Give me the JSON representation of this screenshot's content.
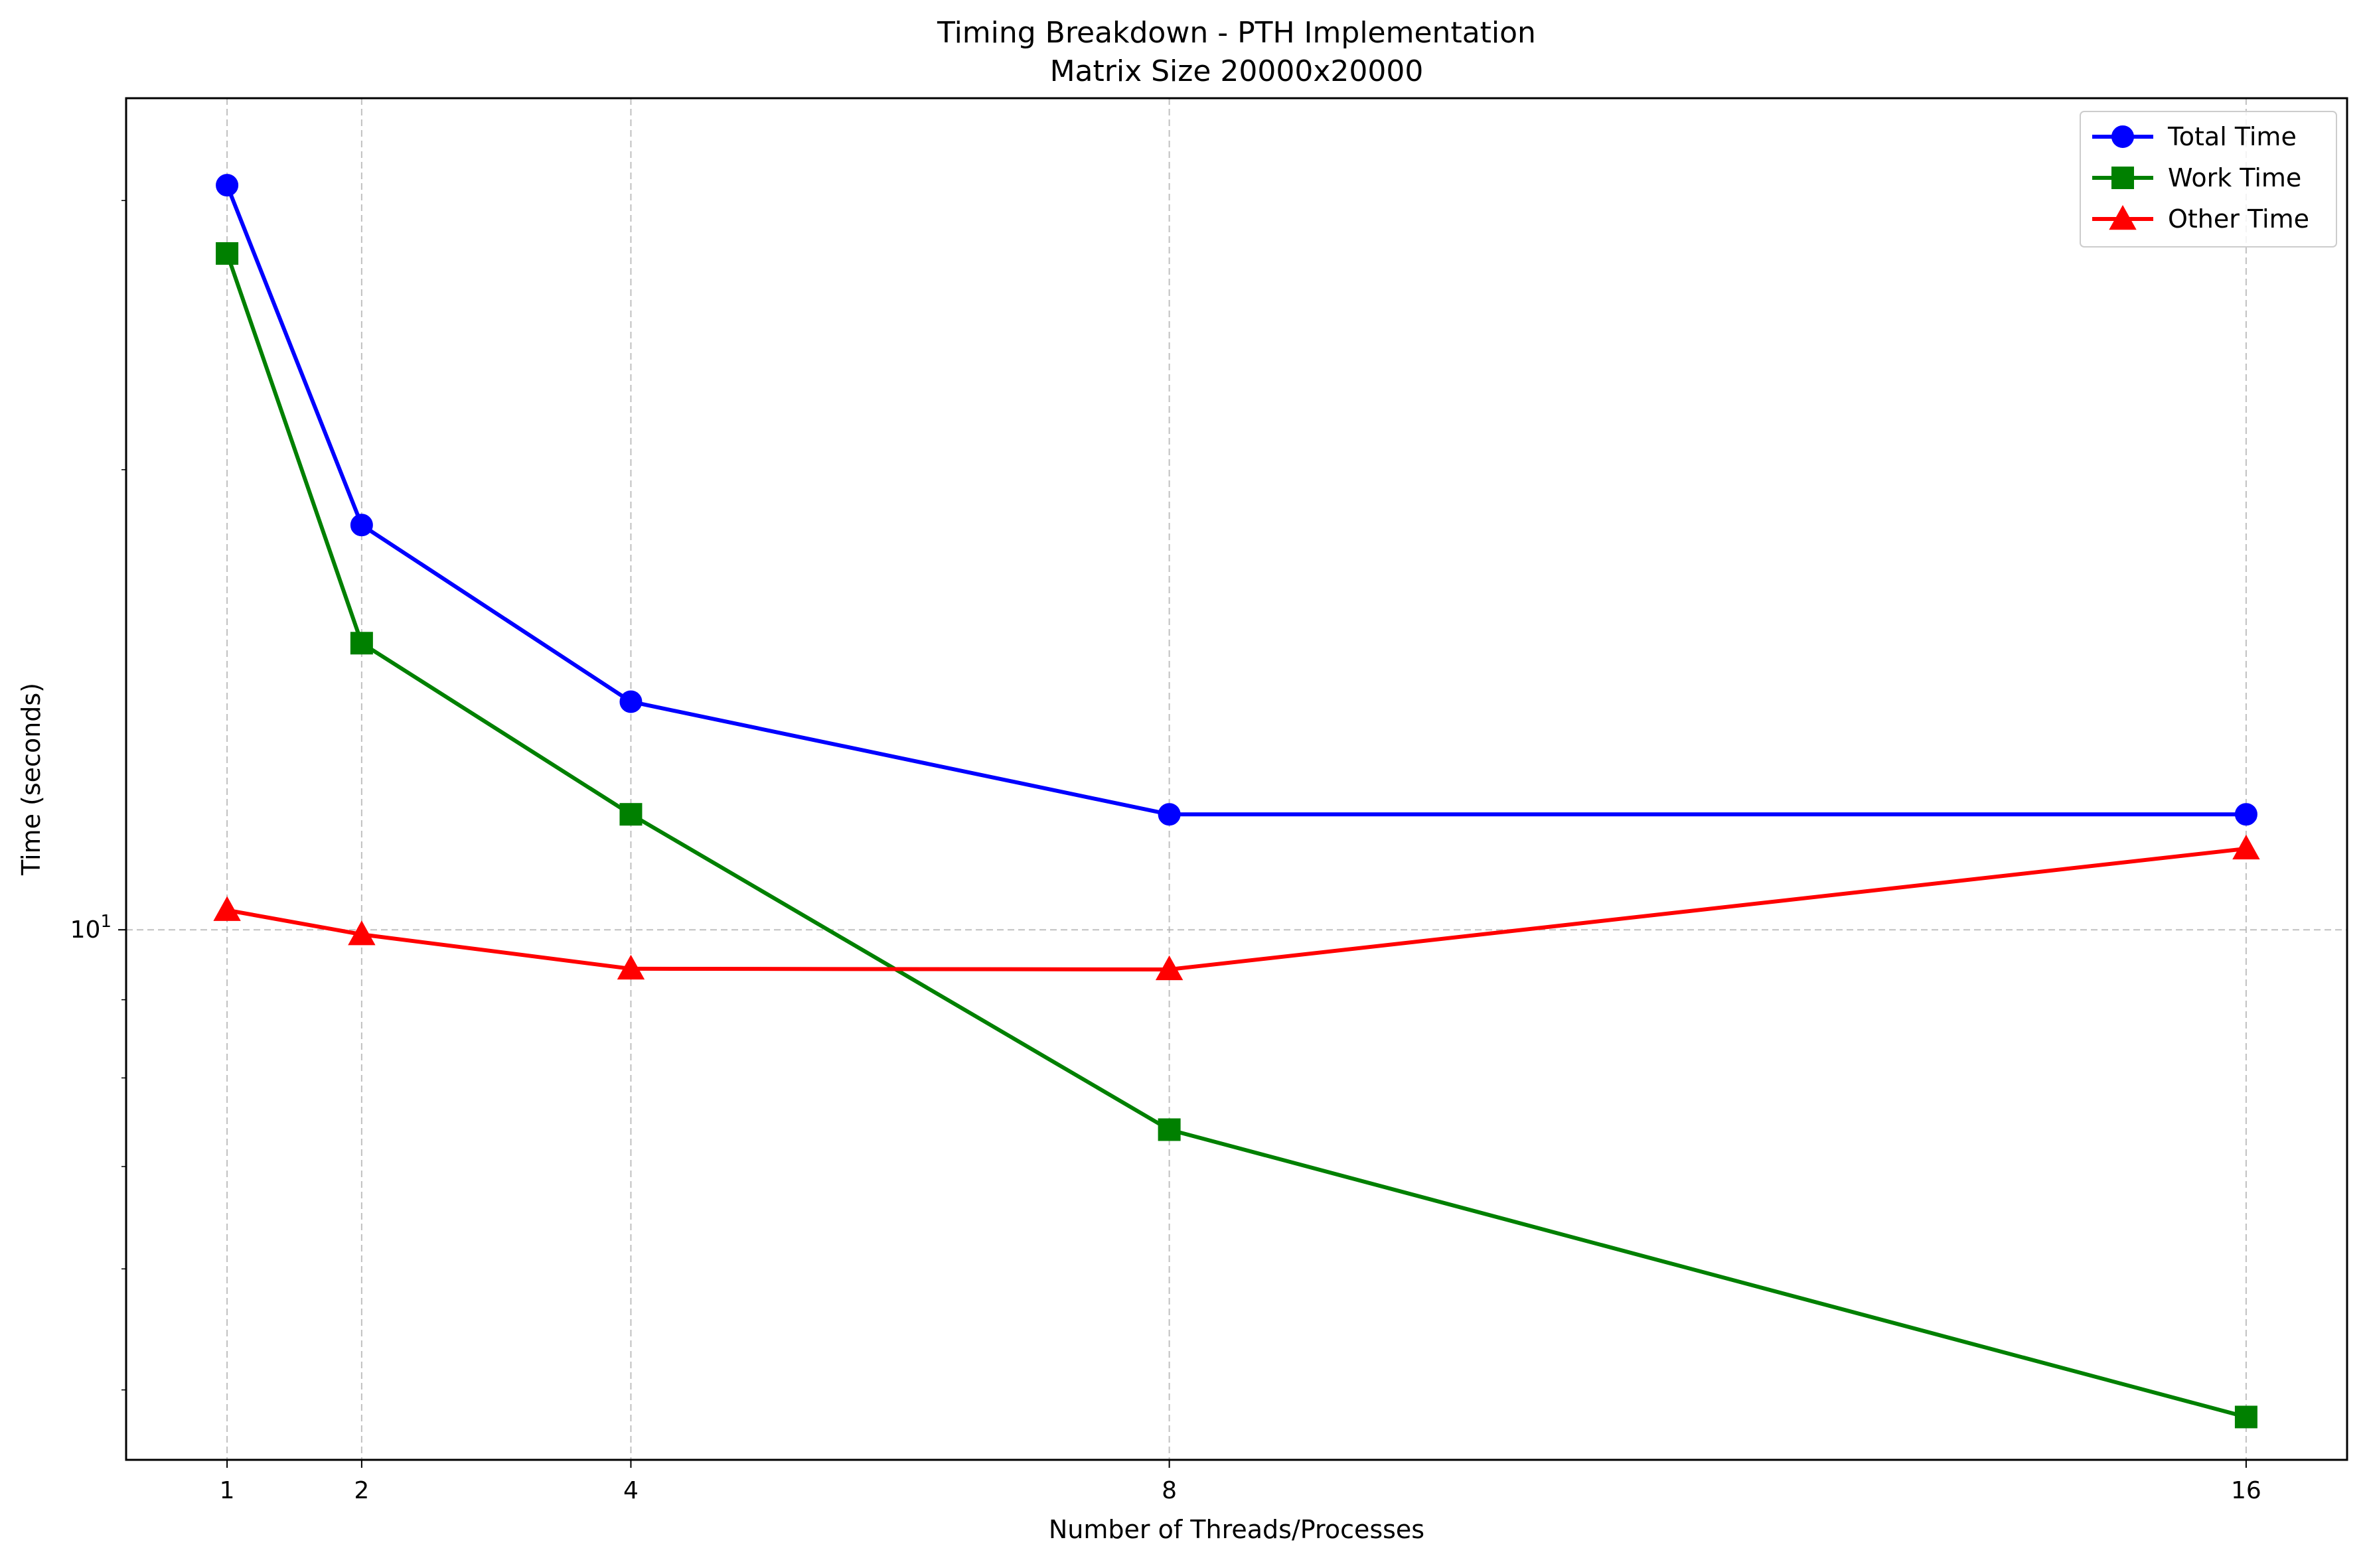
{
  "chart_data": {
    "type": "line",
    "title": "Timing Breakdown - PTH Implementation",
    "subtitle": "Matrix Size 20000x20000",
    "xlabel": "Number of Threads/Processes",
    "ylabel": "Time (seconds)",
    "x": [
      1,
      2,
      4,
      8,
      16
    ],
    "x_tick_labels": [
      "1",
      "2",
      "4",
      "8",
      "16"
    ],
    "y_scale": "log",
    "y_tick_label": {
      "base": "10",
      "exponent": "1",
      "value": 10
    },
    "ylim": [
      4.5,
      35
    ],
    "grid": true,
    "legend_position": "top-right",
    "series": [
      {
        "name": "Total Time",
        "color": "#0000ff",
        "marker": "circle",
        "values": [
          30.7,
          18.4,
          14.1,
          11.9,
          11.9
        ]
      },
      {
        "name": "Work Time",
        "color": "#008000",
        "marker": "square",
        "values": [
          27.7,
          15.4,
          11.9,
          7.4,
          4.8
        ]
      },
      {
        "name": "Other Time",
        "color": "#ff0000",
        "marker": "triangle",
        "values": [
          10.3,
          9.93,
          9.43,
          9.42,
          11.3
        ]
      }
    ]
  }
}
